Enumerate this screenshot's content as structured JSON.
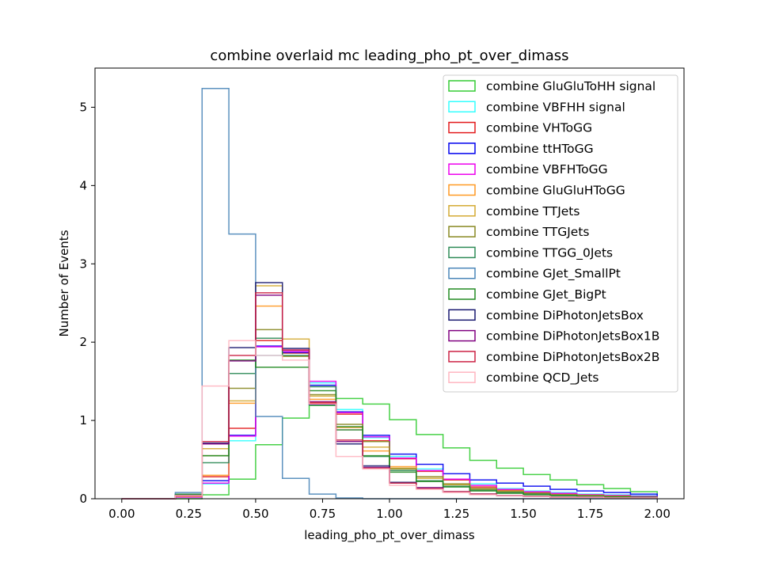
{
  "chart_data": {
    "type": "step-histogram",
    "title": "combine overlaid mc leading_pho_pt_over_dimass",
    "xlabel": "leading_pho_pt_over_dimass",
    "ylabel": "Number of Events",
    "xlim": [
      -0.1,
      2.1
    ],
    "ylim": [
      0,
      5.5
    ],
    "xticks": [
      "0.00",
      "0.25",
      "0.50",
      "0.75",
      "1.00",
      "1.25",
      "1.50",
      "1.75",
      "2.00"
    ],
    "yticks": [
      "0",
      "1",
      "2",
      "3",
      "4",
      "5"
    ],
    "legend_position": "upper right",
    "bin_edges": [
      0.0,
      0.1,
      0.2,
      0.3,
      0.4,
      0.5,
      0.6,
      0.7,
      0.8,
      0.9,
      1.0,
      1.1,
      1.2,
      1.3,
      1.4,
      1.5,
      1.6,
      1.7,
      1.8,
      1.9,
      2.0
    ],
    "series": [
      {
        "name": "combine GluGluToHH signal",
        "color": "#33cc33",
        "values": [
          0,
          0,
          0,
          0.05,
          0.25,
          0.69,
          1.03,
          1.19,
          1.28,
          1.21,
          1.01,
          0.82,
          0.65,
          0.49,
          0.39,
          0.31,
          0.24,
          0.18,
          0.13,
          0.09
        ]
      },
      {
        "name": "combine VBFHH signal",
        "color": "#33ffff",
        "values": [
          0,
          0,
          0.02,
          0.19,
          0.74,
          1.83,
          1.86,
          1.48,
          1.14,
          0.78,
          0.54,
          0.38,
          0.25,
          0.19,
          0.13,
          0.1,
          0.08,
          0.06,
          0.05,
          0.04
        ]
      },
      {
        "name": "combine VHToGG",
        "color": "#e31a1c",
        "values": [
          0,
          0,
          0.03,
          0.28,
          0.9,
          2.02,
          1.86,
          1.22,
          1.08,
          0.74,
          0.51,
          0.35,
          0.24,
          0.15,
          0.11,
          0.08,
          0.06,
          0.05,
          0.04,
          0.03
        ]
      },
      {
        "name": "combine ttHToGG",
        "color": "#0000ee",
        "values": [
          0,
          0,
          0.03,
          0.23,
          0.81,
          1.95,
          1.87,
          1.45,
          1.11,
          0.81,
          0.57,
          0.44,
          0.32,
          0.24,
          0.2,
          0.16,
          0.12,
          0.1,
          0.08,
          0.06
        ]
      },
      {
        "name": "combine VBFHToGG",
        "color": "#ee00ee",
        "values": [
          0,
          0,
          0.02,
          0.2,
          0.8,
          1.94,
          1.88,
          1.5,
          1.1,
          0.79,
          0.52,
          0.36,
          0.25,
          0.17,
          0.12,
          0.09,
          0.07,
          0.05,
          0.04,
          0.03
        ]
      },
      {
        "name": "combine GluGluHToGG",
        "color": "#ff9922",
        "values": [
          0,
          0,
          0.03,
          0.3,
          1.22,
          2.46,
          1.82,
          1.27,
          0.91,
          0.61,
          0.41,
          0.28,
          0.19,
          0.13,
          0.09,
          0.07,
          0.05,
          0.04,
          0.03,
          0.02
        ]
      },
      {
        "name": "combine TTJets",
        "color": "#d4aa33",
        "values": [
          0,
          0,
          0.04,
          0.64,
          1.25,
          2.72,
          2.04,
          1.31,
          0.88,
          0.66,
          0.39,
          0.26,
          0.18,
          0.12,
          0.1,
          0.07,
          0.05,
          0.04,
          0.03,
          0.02
        ]
      },
      {
        "name": "combine TTGJets",
        "color": "#888822",
        "values": [
          0,
          0,
          0.05,
          0.55,
          1.41,
          2.16,
          1.82,
          1.33,
          0.95,
          0.73,
          0.38,
          0.28,
          0.19,
          0.13,
          0.09,
          0.07,
          0.05,
          0.04,
          0.03,
          0.02
        ]
      },
      {
        "name": "combine TTGG_0Jets",
        "color": "#2e8b57",
        "values": [
          0,
          0,
          0.06,
          0.46,
          1.6,
          2.05,
          1.83,
          1.43,
          0.88,
          0.54,
          0.36,
          0.23,
          0.16,
          0.11,
          0.08,
          0.06,
          0.04,
          0.03,
          0.02,
          0.02
        ]
      },
      {
        "name": "combine GJet_SmallPt",
        "color": "#4a86b8",
        "values": [
          0,
          0,
          0.08,
          5.24,
          3.38,
          1.05,
          0.26,
          0.06,
          0.01,
          0,
          0,
          0,
          0,
          0,
          0,
          0,
          0,
          0,
          0,
          0
        ]
      },
      {
        "name": "combine GJet_BigPt",
        "color": "#228b22",
        "values": [
          0,
          0,
          0.05,
          0.55,
          1.77,
          1.68,
          1.68,
          1.38,
          0.92,
          0.55,
          0.34,
          0.22,
          0.15,
          0.1,
          0.07,
          0.05,
          0.04,
          0.03,
          0.02,
          0.01
        ]
      },
      {
        "name": "combine DiPhotonJetsBox",
        "color": "#191970",
        "values": [
          0,
          0,
          0.04,
          0.71,
          1.93,
          2.76,
          1.92,
          1.2,
          0.7,
          0.42,
          0.21,
          0.14,
          0.09,
          0.06,
          0.04,
          0.03,
          0.02,
          0.02,
          0.01,
          0.01
        ]
      },
      {
        "name": "combine DiPhotonJetsBox1B",
        "color": "#800080",
        "values": [
          0,
          0,
          0.04,
          0.7,
          1.76,
          2.6,
          1.9,
          1.24,
          0.73,
          0.4,
          0.2,
          0.14,
          0.09,
          0.06,
          0.04,
          0.03,
          0.02,
          0.02,
          0.01,
          0.01
        ]
      },
      {
        "name": "combine DiPhotonJetsBox2B",
        "color": "#cc2244",
        "values": [
          0,
          0,
          0.04,
          0.73,
          1.83,
          2.63,
          1.9,
          1.23,
          0.75,
          0.39,
          0.2,
          0.13,
          0.09,
          0.06,
          0.04,
          0.03,
          0.02,
          0.02,
          0.01,
          0.01
        ]
      },
      {
        "name": "combine QCD_Jets",
        "color": "#ffb6c1",
        "values": [
          0,
          0,
          0.04,
          1.44,
          2.02,
          1.83,
          1.77,
          1.21,
          0.54,
          0.38,
          0.17,
          0.12,
          0.08,
          0.05,
          0.04,
          0.03,
          0.02,
          0.02,
          0.01,
          0.01
        ]
      }
    ]
  }
}
